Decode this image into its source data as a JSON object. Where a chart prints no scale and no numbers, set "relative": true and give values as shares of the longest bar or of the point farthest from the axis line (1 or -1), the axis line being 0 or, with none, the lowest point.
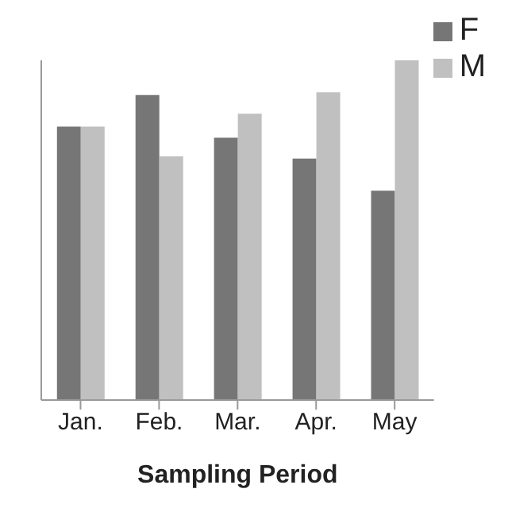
{
  "chart_data": {
    "type": "bar",
    "xlabel": "Sampling Period",
    "categories": [
      "Jan.",
      "Feb.",
      "Mar.",
      "Apr.",
      "May"
    ],
    "relative": true,
    "legend": "top right",
    "grid": false,
    "series": [
      {
        "name": "F",
        "color": "#767676",
        "values": [
          0.805,
          0.898,
          0.772,
          0.711,
          0.616
        ]
      },
      {
        "name": "M",
        "color": "#c0c0c0",
        "values": [
          0.805,
          0.717,
          0.843,
          0.906,
          1
        ]
      }
    ]
  }
}
